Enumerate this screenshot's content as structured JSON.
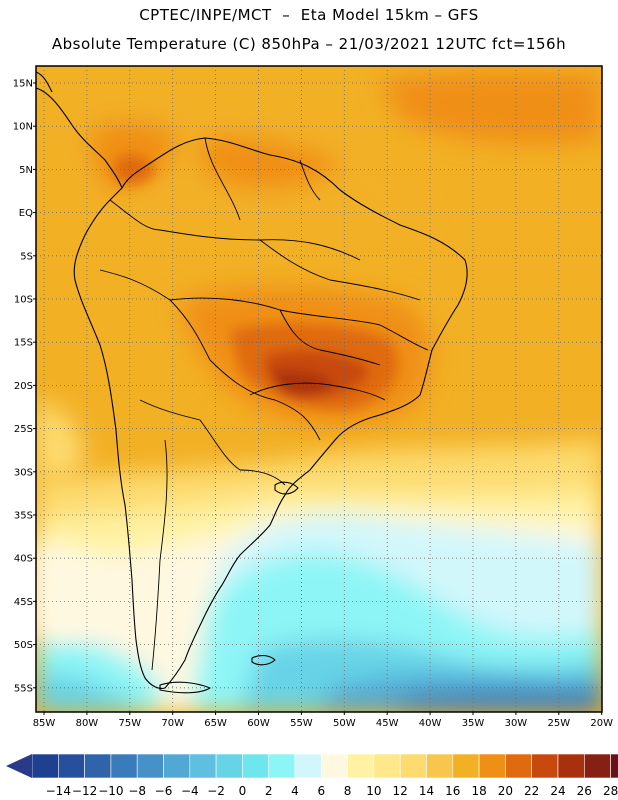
{
  "header": {
    "line1": "CPTEC/INPE/MCT  –  Eta Model 15km – GFS",
    "line2": "Absolute Temperature (C) 850hPa – 21/03/2021 12UTC fct=156h"
  },
  "map": {
    "lat_labels": [
      "15N",
      "10N",
      "5N",
      "EQ",
      "5S",
      "10S",
      "15S",
      "20S",
      "25S",
      "30S",
      "35S",
      "40S",
      "45S",
      "50S",
      "55S"
    ],
    "lon_labels": [
      "85W",
      "80W",
      "75W",
      "70W",
      "65W",
      "60W",
      "55W",
      "50W",
      "45W",
      "40W",
      "35W",
      "30W",
      "25W",
      "20W"
    ],
    "gridlines": "dotted"
  },
  "colorbar": {
    "ticks": [
      "-14",
      "-12",
      "-10",
      "-8",
      "-6",
      "-4",
      "-2",
      "0",
      "2",
      "4",
      "6",
      "8",
      "10",
      "12",
      "14",
      "16",
      "18",
      "20",
      "22",
      "24",
      "26",
      "28"
    ],
    "colors": [
      "#1f3f8f",
      "#27509c",
      "#2f64ab",
      "#3a7bbc",
      "#4692c8",
      "#52a8d4",
      "#5ebfdf",
      "#66d3e6",
      "#6ee6ee",
      "#8ef5f6",
      "#d2f7fb",
      "#fff8e0",
      "#fff2a2",
      "#ffe88a",
      "#fddb6f",
      "#f8c64d",
      "#f2b025",
      "#f08f16",
      "#e06a10",
      "#c8490d",
      "#a8300c",
      "#862012",
      "#6a1018"
    ],
    "left_arrow_color": "#2a3a8a",
    "right_arrow_color": "#6a0a28"
  }
}
